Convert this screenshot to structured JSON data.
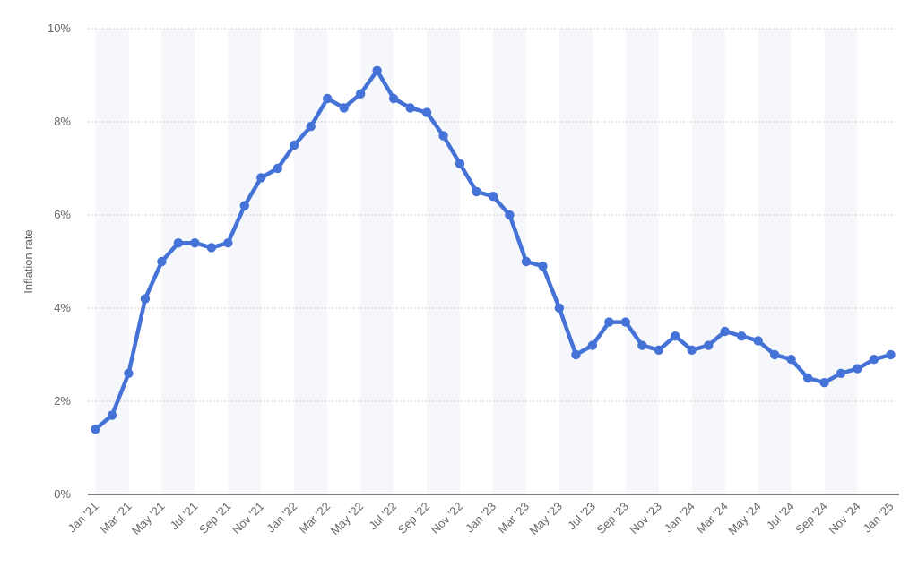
{
  "chart_data": {
    "type": "line",
    "title": "",
    "ylabel": "Inflation rate",
    "ylim": [
      0,
      10
    ],
    "yticks": [
      0,
      2,
      4,
      6,
      8,
      10
    ],
    "ytick_labels": [
      "0%",
      "2%",
      "4%",
      "6%",
      "8%",
      "10%"
    ],
    "grid": true,
    "legend": "none",
    "line_color": "#4472d6",
    "band_color": "#f5f7fa",
    "x_tick_labels": [
      "Jan '21",
      "Mar '21",
      "May '21",
      "Jul '21",
      "Sep '21",
      "Nov '21",
      "Jan '22",
      "Mar '22",
      "May '22",
      "Jul '22",
      "Sep '22",
      "Nov '22",
      "Jan '23",
      "Mar '23",
      "May '23",
      "Jul '23",
      "Sep '23",
      "Nov '23",
      "Jan '24",
      "Mar '24",
      "May '24",
      "Jul '24",
      "Sep '24",
      "Nov '24",
      "Jan '25"
    ],
    "categories": [
      "Jan '21",
      "Feb '21",
      "Mar '21",
      "Apr '21",
      "May '21",
      "Jun '21",
      "Jul '21",
      "Aug '21",
      "Sep '21",
      "Oct '21",
      "Nov '21",
      "Dec '21",
      "Jan '22",
      "Feb '22",
      "Mar '22",
      "Apr '22",
      "May '22",
      "Jun '22",
      "Jul '22",
      "Aug '22",
      "Sep '22",
      "Oct '22",
      "Nov '22",
      "Dec '22",
      "Jan '23",
      "Feb '23",
      "Mar '23",
      "Apr '23",
      "May '23",
      "Jun '23",
      "Jul '23",
      "Aug '23",
      "Sep '23",
      "Oct '23",
      "Nov '23",
      "Dec '23",
      "Jan '24",
      "Feb '24",
      "Mar '24",
      "Apr '24",
      "May '24",
      "Jun '24",
      "Jul '24",
      "Aug '24",
      "Sep '24",
      "Oct '24",
      "Nov '24",
      "Dec '24",
      "Jan '25"
    ],
    "values": [
      1.4,
      1.7,
      2.6,
      4.2,
      5.0,
      5.4,
      5.4,
      5.3,
      5.4,
      6.2,
      6.8,
      7.0,
      7.5,
      7.9,
      8.5,
      8.3,
      8.6,
      9.1,
      8.5,
      8.3,
      8.2,
      7.7,
      7.1,
      6.5,
      6.4,
      6.0,
      5.0,
      4.9,
      4.0,
      3.0,
      3.2,
      3.7,
      3.7,
      3.2,
      3.1,
      3.4,
      3.1,
      3.2,
      3.5,
      3.4,
      3.3,
      3.0,
      2.9,
      2.5,
      2.4,
      2.6,
      2.7,
      2.9,
      3.0
    ]
  }
}
